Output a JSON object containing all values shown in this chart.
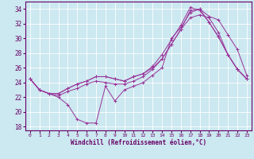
{
  "xlabel": "Windchill (Refroidissement éolien,°C)",
  "background_color": "#cce8f0",
  "grid_color": "#ffffff",
  "line_color": "#993399",
  "x_ticks": [
    0,
    1,
    2,
    3,
    4,
    5,
    6,
    7,
    8,
    9,
    10,
    11,
    12,
    13,
    14,
    15,
    16,
    17,
    18,
    19,
    20,
    21,
    22,
    23
  ],
  "y_ticks": [
    18,
    20,
    22,
    24,
    26,
    28,
    30,
    32,
    34
  ],
  "xlim": [
    -0.5,
    23.5
  ],
  "ylim": [
    17.5,
    35.0
  ],
  "series": [
    {
      "x": [
        0,
        1,
        2,
        3,
        4,
        5,
        6,
        7,
        8,
        9,
        10,
        11,
        12,
        13,
        14,
        15,
        16,
        17,
        18,
        19,
        20,
        21,
        22,
        23
      ],
      "y": [
        24.5,
        23.0,
        22.5,
        22.0,
        21.0,
        19.0,
        18.5,
        18.5,
        23.5,
        21.5,
        23.0,
        23.5,
        24.0,
        25.0,
        26.0,
        30.0,
        31.5,
        33.5,
        34.0,
        33.0,
        32.5,
        30.5,
        28.5,
        25.0
      ]
    },
    {
      "x": [
        0,
        1,
        2,
        3,
        4,
        5,
        6,
        7,
        8,
        9,
        10,
        11,
        12,
        13,
        14,
        15,
        16,
        17,
        18,
        19,
        20,
        21,
        22,
        23
      ],
      "y": [
        24.5,
        23.0,
        22.5,
        22.2,
        22.8,
        23.2,
        23.8,
        24.2,
        24.0,
        23.8,
        23.8,
        24.2,
        24.8,
        25.8,
        27.2,
        29.2,
        31.2,
        33.8,
        34.0,
        32.2,
        30.2,
        27.8,
        25.8,
        24.5
      ]
    },
    {
      "x": [
        0,
        1,
        2,
        3,
        4,
        5,
        6,
        7,
        8,
        9,
        10,
        11,
        12,
        13,
        14,
        15,
        16,
        17,
        18,
        19,
        20,
        21,
        22,
        23
      ],
      "y": [
        24.5,
        23.0,
        22.5,
        22.5,
        23.2,
        23.8,
        24.2,
        24.8,
        24.8,
        24.5,
        24.2,
        24.8,
        25.2,
        26.2,
        27.8,
        29.8,
        31.8,
        34.2,
        33.8,
        32.2,
        30.2,
        27.8,
        25.8,
        24.5
      ]
    },
    {
      "x": [
        0,
        1,
        2,
        3,
        4,
        5,
        6,
        7,
        8,
        9,
        10,
        11,
        12,
        13,
        14,
        15,
        16,
        17,
        18,
        19,
        20,
        21,
        22,
        23
      ],
      "y": [
        24.5,
        23.0,
        22.5,
        22.5,
        23.2,
        23.8,
        24.2,
        24.8,
        24.8,
        24.5,
        24.2,
        24.8,
        25.2,
        26.0,
        27.2,
        29.2,
        31.2,
        32.8,
        33.2,
        32.8,
        30.8,
        27.8,
        25.8,
        24.5
      ]
    }
  ]
}
